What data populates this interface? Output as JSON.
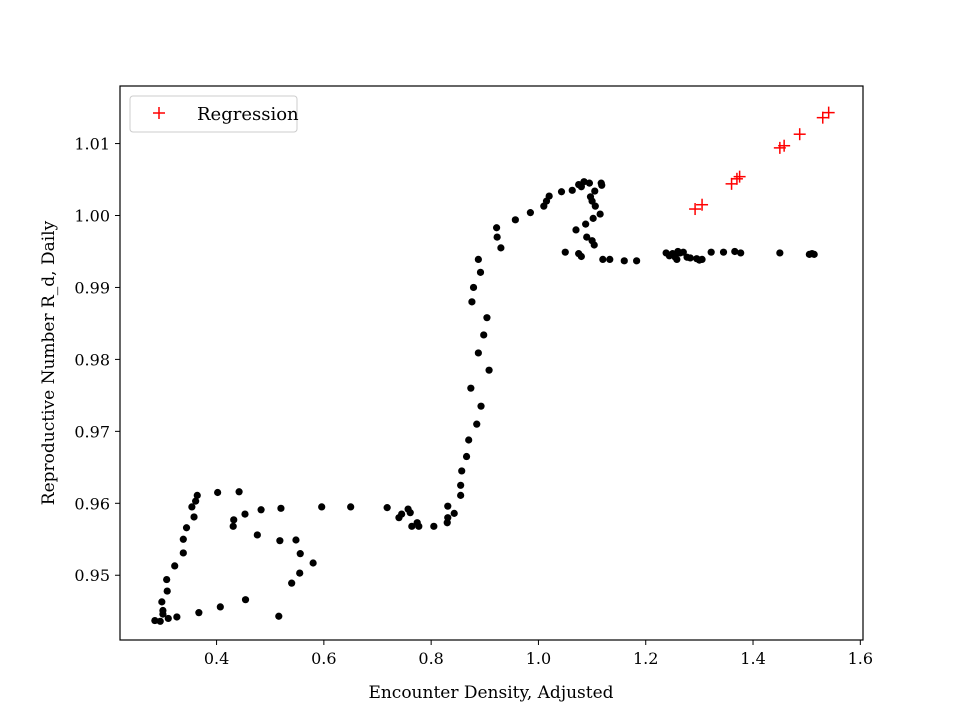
{
  "chart_data": {
    "type": "scatter",
    "title": "",
    "xlabel": "Encounter Density, Adjusted",
    "ylabel": "Reproductive Number R_d, Daily",
    "xlim": [
      0.22,
      1.605
    ],
    "ylim": [
      0.941,
      1.018
    ],
    "xticks": [
      0.4,
      0.6,
      0.8,
      1.0,
      1.2,
      1.4,
      1.6
    ],
    "xtick_labels": [
      "0.4",
      "0.6",
      "0.8",
      "1.0",
      "1.2",
      "1.4",
      "1.6"
    ],
    "yticks": [
      0.95,
      0.96,
      0.97,
      0.98,
      0.99,
      1.0,
      1.01
    ],
    "ytick_labels": [
      "0.95",
      "0.96",
      "0.97",
      "0.98",
      "0.99",
      "1.00",
      "1.01"
    ],
    "grid": false,
    "legend": {
      "position": "top-left",
      "entries": [
        "Regression"
      ]
    },
    "series": [
      {
        "marker": "dot",
        "color": "#000000",
        "points": [
          [
            0.285,
            0.9437
          ],
          [
            0.295,
            0.9436
          ],
          [
            0.3,
            0.9446
          ],
          [
            0.31,
            0.944
          ],
          [
            0.3,
            0.9451
          ],
          [
            0.298,
            0.9463
          ],
          [
            0.308,
            0.9478
          ],
          [
            0.307,
            0.9494
          ],
          [
            0.326,
            0.9442
          ],
          [
            0.322,
            0.9513
          ],
          [
            0.338,
            0.9531
          ],
          [
            0.338,
            0.955
          ],
          [
            0.344,
            0.9566
          ],
          [
            0.358,
            0.9581
          ],
          [
            0.354,
            0.9595
          ],
          [
            0.361,
            0.9603
          ],
          [
            0.364,
            0.9611
          ],
          [
            0.367,
            0.9448
          ],
          [
            0.407,
            0.9456
          ],
          [
            0.454,
            0.9466
          ],
          [
            0.402,
            0.9615
          ],
          [
            0.442,
            0.9616
          ],
          [
            0.432,
            0.9577
          ],
          [
            0.431,
            0.9568
          ],
          [
            0.453,
            0.9585
          ],
          [
            0.476,
            0.9556
          ],
          [
            0.483,
            0.9591
          ],
          [
            0.516,
            0.9443
          ],
          [
            0.52,
            0.9593
          ],
          [
            0.518,
            0.9548
          ],
          [
            0.54,
            0.9489
          ],
          [
            0.556,
            0.953
          ],
          [
            0.555,
            0.9503
          ],
          [
            0.58,
            0.9517
          ],
          [
            0.548,
            0.9549
          ],
          [
            0.596,
            0.9595
          ],
          [
            0.65,
            0.9595
          ],
          [
            0.718,
            0.9594
          ],
          [
            0.74,
            0.958
          ],
          [
            0.745,
            0.9585
          ],
          [
            0.757,
            0.9592
          ],
          [
            0.761,
            0.9587
          ],
          [
            0.764,
            0.9568
          ],
          [
            0.774,
            0.9573
          ],
          [
            0.777,
            0.9568
          ],
          [
            0.805,
            0.9568
          ],
          [
            0.83,
            0.9573
          ],
          [
            0.831,
            0.958
          ],
          [
            0.831,
            0.9596
          ],
          [
            0.843,
            0.9586
          ],
          [
            0.855,
            0.9611
          ],
          [
            0.855,
            0.9625
          ],
          [
            0.857,
            0.9645
          ],
          [
            0.866,
            0.9665
          ],
          [
            0.87,
            0.9688
          ],
          [
            0.874,
            0.976
          ],
          [
            0.879,
            0.99
          ],
          [
            0.876,
            0.988
          ],
          [
            0.885,
            0.971
          ],
          [
            0.888,
            0.9809
          ],
          [
            0.888,
            0.9939
          ],
          [
            0.892,
            0.9921
          ],
          [
            0.893,
            0.9735
          ],
          [
            0.898,
            0.9834
          ],
          [
            0.904,
            0.9858
          ],
          [
            0.908,
            0.9785
          ],
          [
            0.922,
            0.9983
          ],
          [
            0.923,
            0.997
          ],
          [
            0.93,
            0.9955
          ],
          [
            0.957,
            0.9994
          ],
          [
            0.985,
            1.0004
          ],
          [
            1.01,
            1.0013
          ],
          [
            1.015,
            1.002
          ],
          [
            1.02,
            1.0027
          ],
          [
            1.043,
            1.0033
          ],
          [
            1.05,
            0.9949
          ],
          [
            1.063,
            1.0035
          ],
          [
            1.07,
            0.998
          ],
          [
            1.075,
            1.0043
          ],
          [
            1.075,
            0.9947
          ],
          [
            1.08,
            1.004
          ],
          [
            1.08,
            0.9943
          ],
          [
            1.085,
            1.0047
          ],
          [
            1.088,
            0.9988
          ],
          [
            1.09,
            0.997
          ],
          [
            1.095,
            1.0045
          ],
          [
            1.097,
            1.0026
          ],
          [
            1.1,
            1.002
          ],
          [
            1.1,
            0.9965
          ],
          [
            1.102,
            0.9996
          ],
          [
            1.104,
            0.9959
          ],
          [
            1.105,
            1.0034
          ],
          [
            1.106,
            1.0013
          ],
          [
            1.115,
            1.0002
          ],
          [
            1.117,
            1.0045
          ],
          [
            1.118,
            1.0042
          ],
          [
            1.12,
            0.9939
          ],
          [
            1.133,
            0.9939
          ],
          [
            1.16,
            0.9937
          ],
          [
            1.183,
            0.9937
          ],
          [
            1.238,
            0.9948
          ],
          [
            1.244,
            0.9944
          ],
          [
            1.25,
            0.9947
          ],
          [
            1.255,
            0.9942
          ],
          [
            1.258,
            0.9939
          ],
          [
            1.26,
            0.995
          ],
          [
            1.264,
            0.9948
          ],
          [
            1.27,
            0.9949
          ],
          [
            1.277,
            0.9942
          ],
          [
            1.283,
            0.9941
          ],
          [
            1.295,
            0.994
          ],
          [
            1.3,
            0.9938
          ],
          [
            1.305,
            0.9939
          ],
          [
            1.322,
            0.9949
          ],
          [
            1.345,
            0.9949
          ],
          [
            1.366,
            0.995
          ],
          [
            1.377,
            0.9948
          ],
          [
            1.45,
            0.9948
          ],
          [
            1.505,
            0.9946
          ],
          [
            1.51,
            0.9947
          ],
          [
            1.514,
            0.9946
          ]
        ]
      },
      {
        "name": "Regression",
        "marker": "plus",
        "color": "#ff0000",
        "points": [
          [
            1.292,
            1.0009
          ],
          [
            1.305,
            1.0015
          ],
          [
            1.36,
            1.0044
          ],
          [
            1.37,
            1.0051
          ],
          [
            1.375,
            1.0054
          ],
          [
            1.45,
            1.0094
          ],
          [
            1.458,
            1.0097
          ],
          [
            1.487,
            1.0113
          ],
          [
            1.53,
            1.0136
          ],
          [
            1.541,
            1.0143
          ]
        ]
      }
    ]
  }
}
